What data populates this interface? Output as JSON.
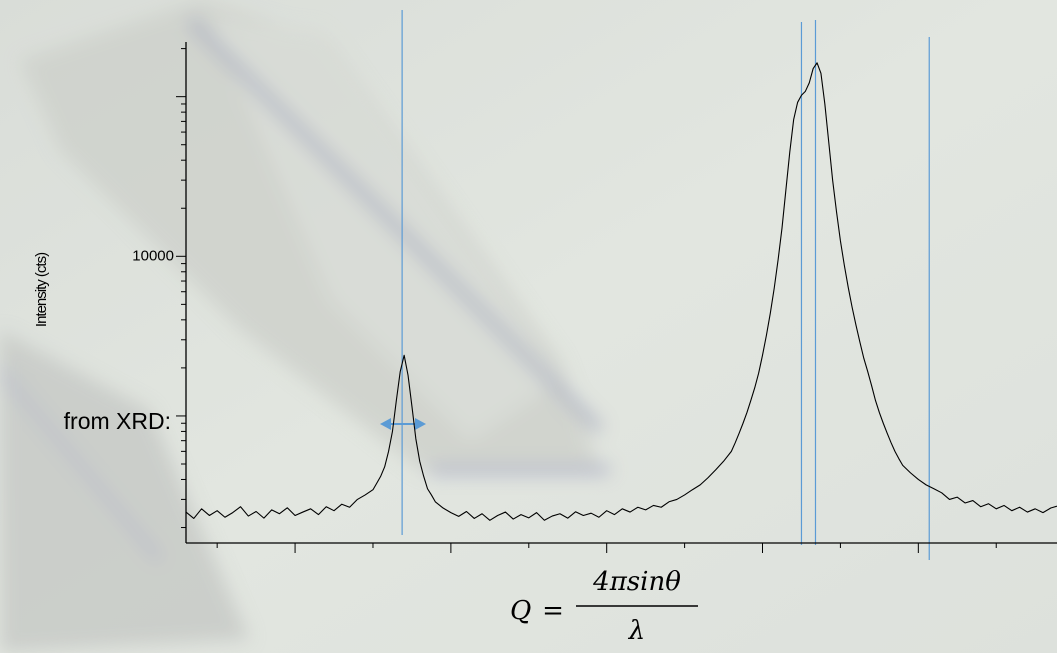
{
  "chart_data": {
    "type": "line",
    "y_label": "Intensity (cts)",
    "color": "#000000",
    "log_y": true,
    "xlim": [
      0,
      5.59
    ],
    "ylim": [
      160,
      220000
    ],
    "xticks": [
      0.7,
      1.7,
      2.7,
      3.7,
      4.7
    ],
    "xminorticks": [
      0.2,
      1.2,
      2.2,
      3.2,
      4.2,
      5.2
    ],
    "yticks": [
      10000
    ],
    "yminorticks": [
      200,
      300,
      400,
      500,
      600,
      700,
      800,
      900,
      1000,
      2000,
      3000,
      4000,
      5000,
      6000,
      7000,
      8000,
      9000,
      20000,
      30000,
      40000,
      50000,
      60000,
      70000,
      80000,
      90000,
      100000,
      200000
    ],
    "vlines": [
      1.387,
      3.95,
      4.04,
      4.77
    ],
    "vline_color": "#5b9bd5",
    "x": [
      0,
      0.05,
      0.1,
      0.15,
      0.2,
      0.25,
      0.3,
      0.35,
      0.4,
      0.45,
      0.5,
      0.55,
      0.6,
      0.65,
      0.7,
      0.75,
      0.8,
      0.85,
      0.9,
      0.95,
      1.0,
      1.05,
      1.1,
      1.15,
      1.2,
      1.225,
      1.25,
      1.275,
      1.3,
      1.325,
      1.35,
      1.375,
      1.4,
      1.425,
      1.45,
      1.475,
      1.5,
      1.525,
      1.55,
      1.575,
      1.6,
      1.65,
      1.7,
      1.75,
      1.8,
      1.85,
      1.9,
      1.95,
      2.0,
      2.05,
      2.1,
      2.15,
      2.2,
      2.25,
      2.3,
      2.35,
      2.4,
      2.45,
      2.5,
      2.55,
      2.6,
      2.65,
      2.7,
      2.75,
      2.8,
      2.85,
      2.9,
      2.95,
      3.0,
      3.05,
      3.1,
      3.15,
      3.2,
      3.25,
      3.3,
      3.35,
      3.4,
      3.45,
      3.5,
      3.525,
      3.55,
      3.575,
      3.6,
      3.625,
      3.65,
      3.675,
      3.7,
      3.725,
      3.75,
      3.775,
      3.8,
      3.825,
      3.85,
      3.875,
      3.9,
      3.925,
      3.95,
      3.975,
      4.0,
      4.025,
      4.05,
      4.075,
      4.1,
      4.125,
      4.15,
      4.175,
      4.2,
      4.225,
      4.25,
      4.275,
      4.3,
      4.325,
      4.35,
      4.375,
      4.4,
      4.425,
      4.45,
      4.475,
      4.5,
      4.525,
      4.55,
      4.575,
      4.6,
      4.65,
      4.7,
      4.75,
      4.8,
      4.85,
      4.9,
      4.95,
      5.0,
      5.05,
      5.1,
      5.15,
      5.2,
      5.25,
      5.3,
      5.35,
      5.4,
      5.45,
      5.5,
      5.55,
      5.59
    ],
    "values": [
      250,
      228,
      262,
      238,
      255,
      232,
      248,
      270,
      236,
      252,
      229,
      258,
      244,
      266,
      238,
      250,
      262,
      241,
      270,
      255,
      280,
      268,
      300,
      320,
      345,
      380,
      420,
      480,
      600,
      800,
      1250,
      1900,
      2400,
      1800,
      1150,
      720,
      520,
      420,
      350,
      320,
      290,
      265,
      248,
      235,
      252,
      228,
      244,
      222,
      238,
      250,
      226,
      241,
      230,
      248,
      222,
      236,
      244,
      229,
      251,
      238,
      246,
      232,
      255,
      241,
      262,
      250,
      268,
      258,
      275,
      268,
      290,
      300,
      320,
      345,
      370,
      410,
      460,
      520,
      600,
      680,
      780,
      900,
      1050,
      1250,
      1500,
      1850,
      2400,
      3200,
      4400,
      6300,
      9500,
      15000,
      26000,
      45000,
      72000,
      92000,
      102000,
      108000,
      122000,
      150000,
      163000,
      140000,
      90000,
      52000,
      30000,
      19000,
      12500,
      8800,
      6400,
      4800,
      3700,
      2900,
      2300,
      1900,
      1550,
      1250,
      1050,
      900,
      780,
      680,
      600,
      540,
      490,
      440,
      400,
      370,
      350,
      330,
      300,
      310,
      285,
      295,
      270,
      282,
      262,
      275,
      255,
      268,
      250,
      262,
      248,
      265,
      272
    ]
  },
  "annotation": "from XRD:",
  "formula": {
    "lhs": "Q",
    "equals": "=",
    "numerator": "4πsinθ",
    "denominator": "λ"
  }
}
